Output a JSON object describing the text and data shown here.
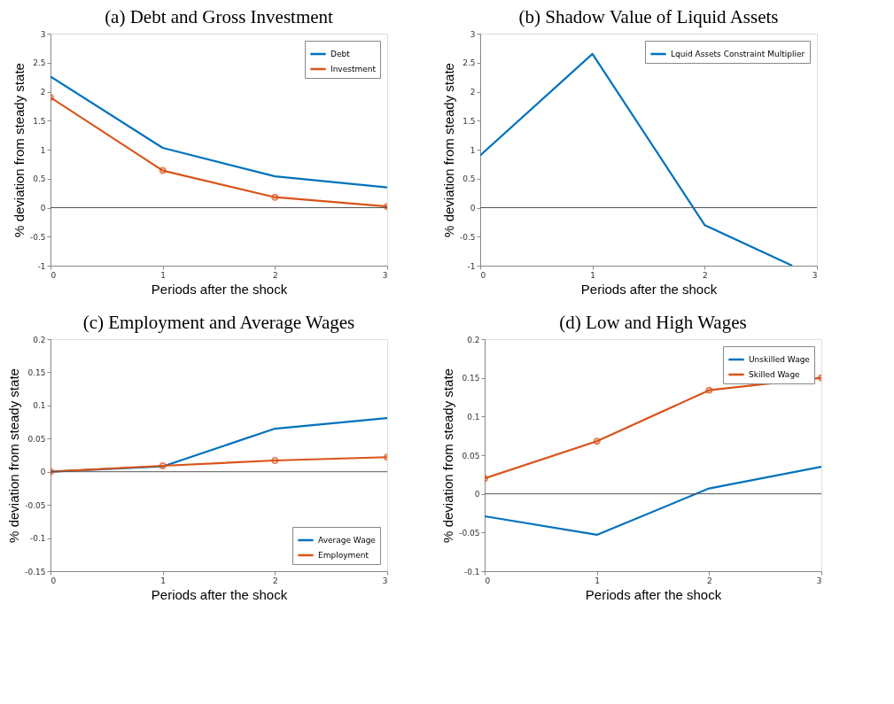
{
  "chart_data": [
    {
      "type": "line",
      "title": "(a) Debt and Gross Investment",
      "xlabel": "Periods after the shock",
      "ylabel": "% deviation from steady state",
      "x": [
        0,
        1,
        2,
        3
      ],
      "xlim": [
        0,
        3
      ],
      "xticks": [
        0,
        1,
        2,
        3
      ],
      "ylim": [
        -1,
        3
      ],
      "yticks": [
        -1,
        -0.5,
        0,
        0.5,
        1,
        1.5,
        2,
        2.5,
        3
      ],
      "legend": "top right",
      "grid": false,
      "ref_lines": [
        {
          "axis": "y",
          "value": 0,
          "color": "#555555"
        }
      ],
      "series": [
        {
          "name": "Debt",
          "color": "#0072bd",
          "values": [
            2.26,
            1.03,
            0.54,
            0.35
          ],
          "marker": "none"
        },
        {
          "name": "Investment",
          "color": "#d95319",
          "values": [
            1.9,
            0.64,
            0.18,
            0.02
          ],
          "marker": "circle"
        }
      ]
    },
    {
      "type": "line",
      "title": "(b) Shadow Value of Liquid Assets",
      "xlabel": "Periods after the shock",
      "ylabel": "% deviation from steady state",
      "xlim": [
        0,
        3
      ],
      "xticks": [
        0,
        1,
        2,
        3
      ],
      "ylim": [
        -1,
        3
      ],
      "yticks": [
        -1,
        -0.5,
        0,
        0.5,
        1,
        1.5,
        2,
        2.5,
        3
      ],
      "legend": "top right",
      "grid": false,
      "ref_lines": [
        {
          "axis": "y",
          "value": 0,
          "color": "#555555"
        }
      ],
      "series": [
        {
          "name": "Lquid Assets Constraint Multiplier",
          "color": "#0072bd",
          "x": [
            0,
            1,
            2,
            2.78
          ],
          "values": [
            0.9,
            2.65,
            -0.3,
            -1
          ],
          "marker": "none"
        }
      ]
    },
    {
      "type": "line",
      "title": "(c) Employment and Average Wages",
      "xlabel": "Periods after the shock",
      "ylabel": "% deviation from steady state",
      "x": [
        0,
        1,
        2,
        3
      ],
      "xlim": [
        0,
        3
      ],
      "xticks": [
        0,
        1,
        2,
        3
      ],
      "ylim": [
        -0.15,
        0.2
      ],
      "yticks": [
        -0.15,
        -0.1,
        -0.05,
        0,
        0.05,
        0.1,
        0.15,
        0.2
      ],
      "legend": "bottom right",
      "grid": false,
      "ref_lines": [
        {
          "axis": "y",
          "value": 0,
          "color": "#555555"
        }
      ],
      "series": [
        {
          "name": "Average Wage",
          "color": "#0072bd",
          "values": [
            0,
            0.008,
            0.065,
            0.081
          ],
          "marker": "none"
        },
        {
          "name": "Employment",
          "color": "#d95319",
          "values": [
            0,
            0.009,
            0.017,
            0.022
          ],
          "marker": "circle"
        }
      ]
    },
    {
      "type": "line",
      "title": "(d) Low and High Wages",
      "xlabel": "Periods after the shock",
      "ylabel": "% deviation from steady state",
      "x": [
        0,
        1,
        2,
        3
      ],
      "xlim": [
        0,
        3
      ],
      "xticks": [
        0,
        1,
        2,
        3
      ],
      "ylim": [
        -0.1,
        0.2
      ],
      "yticks": [
        -0.1,
        -0.05,
        0,
        0.05,
        0.1,
        0.15,
        0.2
      ],
      "legend": "top right",
      "grid": false,
      "ref_lines": [
        {
          "axis": "y",
          "value": 0,
          "color": "#555555"
        }
      ],
      "series": [
        {
          "name": "Unskilled Wage",
          "color": "#0072bd",
          "values": [
            -0.029,
            -0.053,
            0.007,
            0.035
          ],
          "marker": "none"
        },
        {
          "name": "Skilled Wage",
          "color": "#d95319",
          "values": [
            0.02,
            0.068,
            0.134,
            0.15
          ],
          "marker": "circle"
        }
      ]
    }
  ]
}
